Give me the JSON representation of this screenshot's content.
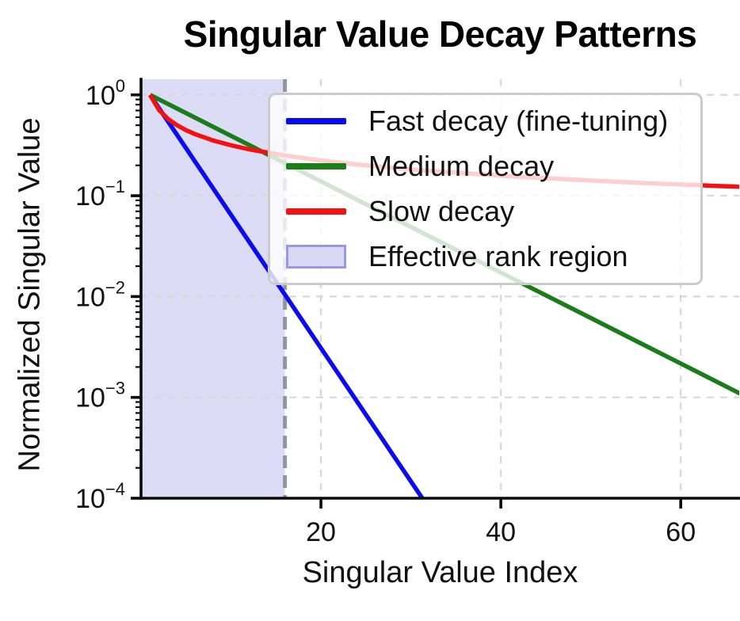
{
  "figure": {
    "background": "#ffffff"
  },
  "chart_data": {
    "type": "line",
    "title": "Singular Value Decay Patterns",
    "xlabel": "Singular Value Index",
    "ylabel": "Normalized Singular Value",
    "x_axis": {
      "scale": "linear",
      "min": 0,
      "max": 66.5,
      "ticks": [
        {
          "label": "20",
          "value": 20
        },
        {
          "label": "40",
          "value": 40
        },
        {
          "label": "60",
          "value": 60
        }
      ]
    },
    "y_axis": {
      "scale": "log",
      "min": 0.0001,
      "max": 1.43,
      "ticks": [
        {
          "base": "10",
          "exp": "0",
          "value": 1
        },
        {
          "base": "10",
          "exp": "−1",
          "value": 0.1
        },
        {
          "base": "10",
          "exp": "−2",
          "value": 0.01
        },
        {
          "base": "10",
          "exp": "−3",
          "value": 0.001
        },
        {
          "base": "10",
          "exp": "−4",
          "value": 0.0001
        }
      ]
    },
    "grid": {
      "show": true,
      "color": "#d8d8d8",
      "style": "dashed"
    },
    "legend_position": "upper right",
    "series": [
      {
        "name": "Fast decay (fine-tuning)",
        "color": "#0b0bf0",
        "x": [
          1,
          2,
          3,
          4,
          5,
          6,
          7,
          8,
          10,
          12,
          14,
          16,
          18,
          20,
          22,
          24,
          26,
          28,
          30,
          32,
          33
        ],
        "y": [
          1,
          0.7377,
          0.5442,
          0.4014,
          0.2961,
          0.2184,
          0.1611,
          0.1189,
          0.0647,
          0.0352,
          0.01915,
          0.01042,
          0.00567,
          0.00308,
          0.00168,
          0.000913,
          0.000497,
          0.00027,
          0.000147,
          8e-05,
          5.91e-05
        ]
      },
      {
        "name": "Medium decay",
        "color": "#1a7d1a",
        "x": [
          1,
          4,
          8,
          12,
          16,
          20,
          24,
          28,
          32,
          36,
          40,
          44,
          48,
          52,
          56,
          60,
          64,
          66.8
        ],
        "y": [
          1,
          0.732,
          0.483,
          0.319,
          0.21,
          0.139,
          0.0914,
          0.0603,
          0.0398,
          0.0263,
          0.0173,
          0.0114,
          0.00754,
          0.00497,
          0.00328,
          0.00217,
          0.00143,
          0.00107
        ]
      },
      {
        "name": "Slow decay",
        "color": "#f21212",
        "x": [
          1,
          2,
          3,
          4,
          5,
          6,
          8,
          10,
          12,
          16,
          20,
          24,
          28,
          32,
          40,
          48,
          56,
          64,
          66.8
        ],
        "y": [
          1,
          0.7071,
          0.5774,
          0.5,
          0.4472,
          0.4082,
          0.3536,
          0.3162,
          0.2887,
          0.25,
          0.2236,
          0.2041,
          0.189,
          0.1768,
          0.1581,
          0.1443,
          0.1336,
          0.125,
          0.1224
        ]
      }
    ],
    "annotations": {
      "effective_rank_region": {
        "label": "Effective rank region",
        "x_start": 0,
        "x_end": 16,
        "fill": "#dcdcf6",
        "edge": "#9898e6"
      },
      "rank_cutoff_line": {
        "x": 16,
        "color": "#86868f",
        "style": "dashed",
        "opacity": 0.85
      }
    }
  },
  "legend": {
    "items": [
      {
        "label": "Fast decay (fine-tuning)",
        "type": "line",
        "color": "#0b0bf0"
      },
      {
        "label": "Medium decay",
        "type": "line",
        "color": "#1a7d1a"
      },
      {
        "label": "Slow decay",
        "type": "line",
        "color": "#f21212"
      },
      {
        "label": "Effective rank region",
        "type": "patch",
        "fill": "#d8d8f5",
        "border": "#9898e6"
      }
    ]
  }
}
